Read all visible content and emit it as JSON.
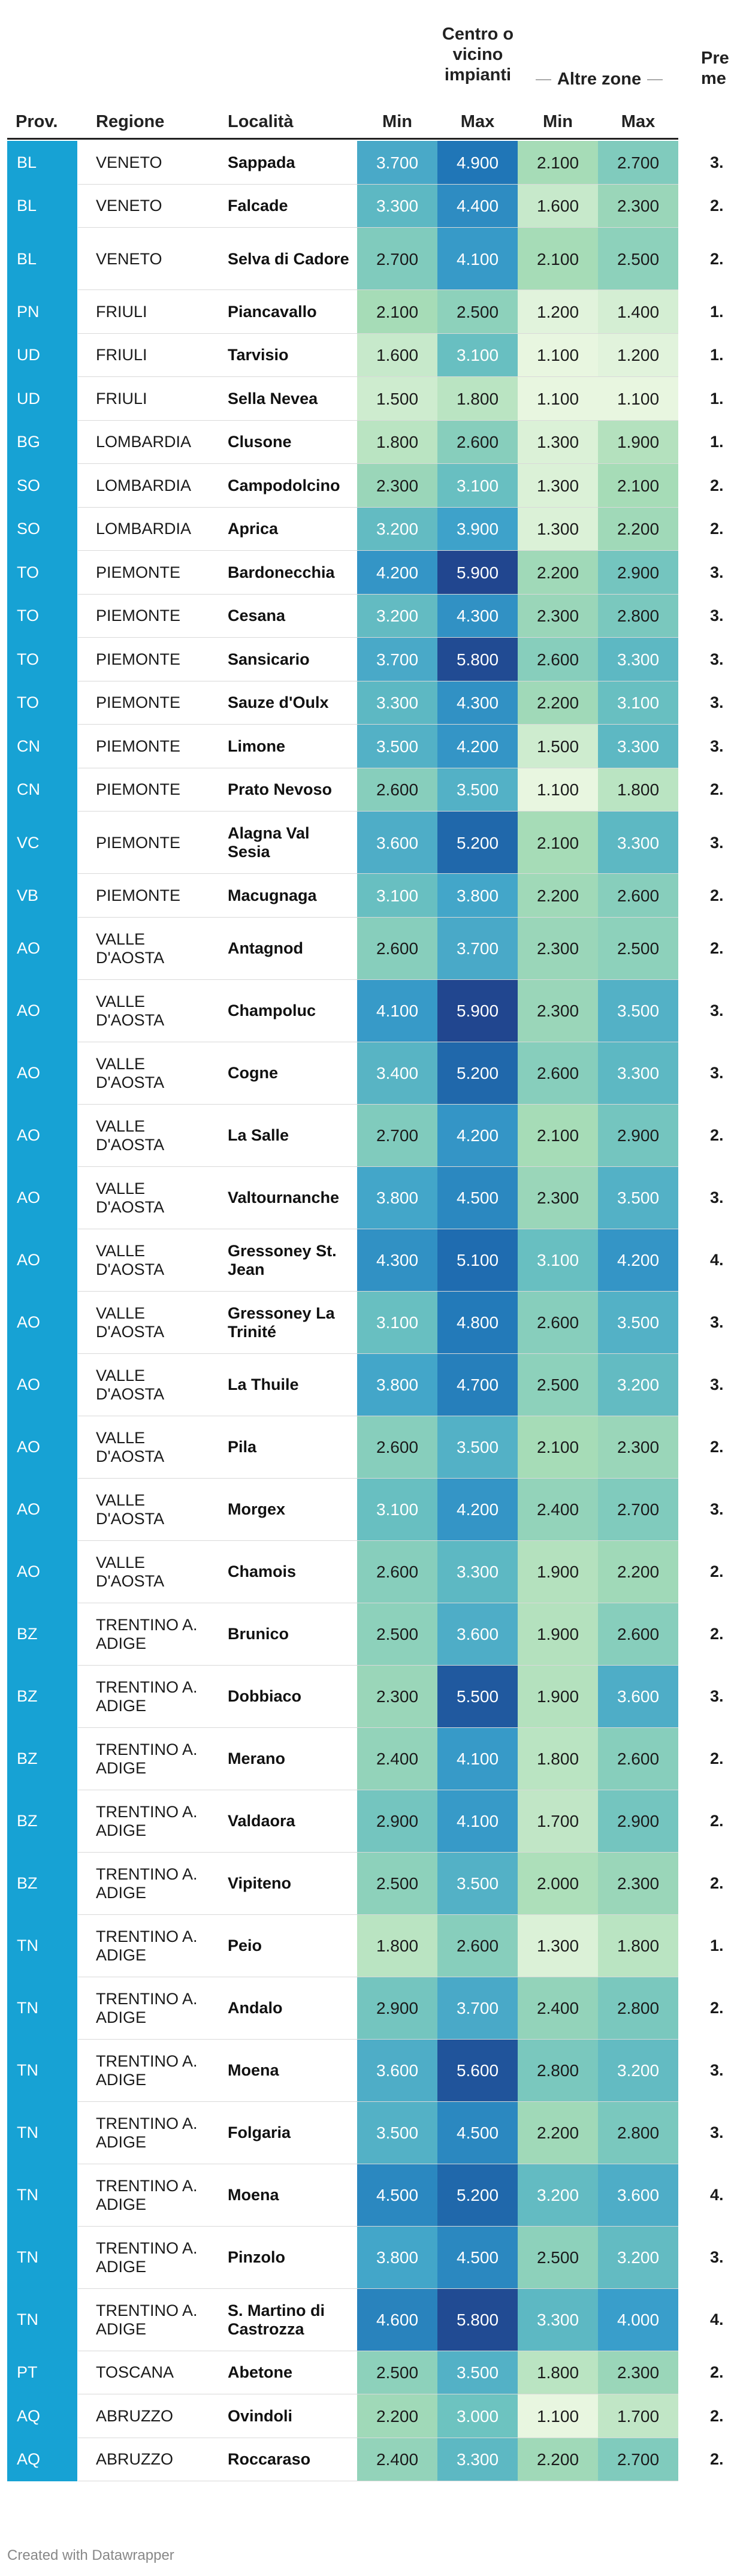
{
  "header": {
    "prov": "Prov.",
    "regione": "Regione",
    "localita": "Località",
    "centro_line1": "Centro o",
    "centro_line2": "vicino",
    "centro_line3": "impianti",
    "altre": "Altre zone",
    "min": "Min",
    "max": "Max",
    "prezzo_line1": "Pre",
    "prezzo_line2": "me"
  },
  "footer": "Created with Datawrapper",
  "color_scale": [
    "#e8f6e0",
    "#a9ddb7",
    "#6cc2c0",
    "#3a9fcb",
    "#1f74b6",
    "#21468f"
  ],
  "chart_data": {
    "type": "table",
    "columns": [
      "Prov.",
      "Regione",
      "Località",
      "Centro o vicino impianti Min",
      "Centro o vicino impianti Max",
      "Altre zone Min",
      "Altre zone Max",
      "Prezzo medio"
    ],
    "rows": [
      {
        "prov": "BL",
        "regione": "VENETO",
        "localita": "Sappada",
        "min1": "3.700",
        "max1": "4.900",
        "min2": "2.100",
        "max2": "2.700",
        "med": "3."
      },
      {
        "prov": "BL",
        "regione": "VENETO",
        "localita": "Falcade",
        "min1": "3.300",
        "max1": "4.400",
        "min2": "1.600",
        "max2": "2.300",
        "med": "2."
      },
      {
        "prov": "BL",
        "regione": "VENETO",
        "localita": "Selva di Cadore",
        "min1": "2.700",
        "max1": "4.100",
        "min2": "2.100",
        "max2": "2.500",
        "med": "2."
      },
      {
        "prov": "PN",
        "regione": "FRIULI",
        "localita": "Piancavallo",
        "min1": "2.100",
        "max1": "2.500",
        "min2": "1.200",
        "max2": "1.400",
        "med": "1."
      },
      {
        "prov": "UD",
        "regione": "FRIULI",
        "localita": "Tarvisio",
        "min1": "1.600",
        "max1": "3.100",
        "min2": "1.100",
        "max2": "1.200",
        "med": "1."
      },
      {
        "prov": "UD",
        "regione": "FRIULI",
        "localita": "Sella Nevea",
        "min1": "1.500",
        "max1": "1.800",
        "min2": "1.100",
        "max2": "1.100",
        "med": "1."
      },
      {
        "prov": "BG",
        "regione": "LOMBARDIA",
        "localita": "Clusone",
        "min1": "1.800",
        "max1": "2.600",
        "min2": "1.300",
        "max2": "1.900",
        "med": "1."
      },
      {
        "prov": "SO",
        "regione": "LOMBARDIA",
        "localita": "Campodolcino",
        "min1": "2.300",
        "max1": "3.100",
        "min2": "1.300",
        "max2": "2.100",
        "med": "2."
      },
      {
        "prov": "SO",
        "regione": "LOMBARDIA",
        "localita": "Aprica",
        "min1": "3.200",
        "max1": "3.900",
        "min2": "1.300",
        "max2": "2.200",
        "med": "2."
      },
      {
        "prov": "TO",
        "regione": "PIEMONTE",
        "localita": "Bardonecchia",
        "min1": "4.200",
        "max1": "5.900",
        "min2": "2.200",
        "max2": "2.900",
        "med": "3."
      },
      {
        "prov": "TO",
        "regione": "PIEMONTE",
        "localita": "Cesana",
        "min1": "3.200",
        "max1": "4.300",
        "min2": "2.300",
        "max2": "2.800",
        "med": "3."
      },
      {
        "prov": "TO",
        "regione": "PIEMONTE",
        "localita": "Sansicario",
        "min1": "3.700",
        "max1": "5.800",
        "min2": "2.600",
        "max2": "3.300",
        "med": "3."
      },
      {
        "prov": "TO",
        "regione": "PIEMONTE",
        "localita": "Sauze d'Oulx",
        "min1": "3.300",
        "max1": "4.300",
        "min2": "2.200",
        "max2": "3.100",
        "med": "3."
      },
      {
        "prov": "CN",
        "regione": "PIEMONTE",
        "localita": "Limone",
        "min1": "3.500",
        "max1": "4.200",
        "min2": "1.500",
        "max2": "3.300",
        "med": "3."
      },
      {
        "prov": "CN",
        "regione": "PIEMONTE",
        "localita": "Prato Nevoso",
        "min1": "2.600",
        "max1": "3.500",
        "min2": "1.100",
        "max2": "1.800",
        "med": "2."
      },
      {
        "prov": "VC",
        "regione": "PIEMONTE",
        "localita": "Alagna Val Sesia",
        "min1": "3.600",
        "max1": "5.200",
        "min2": "2.100",
        "max2": "3.300",
        "med": "3."
      },
      {
        "prov": "VB",
        "regione": "PIEMONTE",
        "localita": "Macugnaga",
        "min1": "3.100",
        "max1": "3.800",
        "min2": "2.200",
        "max2": "2.600",
        "med": "2."
      },
      {
        "prov": "AO",
        "regione": "VALLE D'AOSTA",
        "localita": "Antagnod",
        "min1": "2.600",
        "max1": "3.700",
        "min2": "2.300",
        "max2": "2.500",
        "med": "2."
      },
      {
        "prov": "AO",
        "regione": "VALLE D'AOSTA",
        "localita": "Champoluc",
        "min1": "4.100",
        "max1": "5.900",
        "min2": "2.300",
        "max2": "3.500",
        "med": "3."
      },
      {
        "prov": "AO",
        "regione": "VALLE D'AOSTA",
        "localita": "Cogne",
        "min1": "3.400",
        "max1": "5.200",
        "min2": "2.600",
        "max2": "3.300",
        "med": "3."
      },
      {
        "prov": "AO",
        "regione": "VALLE D'AOSTA",
        "localita": "La Salle",
        "min1": "2.700",
        "max1": "4.200",
        "min2": "2.100",
        "max2": "2.900",
        "med": "2."
      },
      {
        "prov": "AO",
        "regione": "VALLE D'AOSTA",
        "localita": "Valtournanche",
        "min1": "3.800",
        "max1": "4.500",
        "min2": "2.300",
        "max2": "3.500",
        "med": "3."
      },
      {
        "prov": "AO",
        "regione": "VALLE D'AOSTA",
        "localita": "Gressoney St. Jean",
        "min1": "4.300",
        "max1": "5.100",
        "min2": "3.100",
        "max2": "4.200",
        "med": "4."
      },
      {
        "prov": "AO",
        "regione": "VALLE D'AOSTA",
        "localita": "Gressoney La Trinité",
        "min1": "3.100",
        "max1": "4.800",
        "min2": "2.600",
        "max2": "3.500",
        "med": "3."
      },
      {
        "prov": "AO",
        "regione": "VALLE D'AOSTA",
        "localita": "La Thuile",
        "min1": "3.800",
        "max1": "4.700",
        "min2": "2.500",
        "max2": "3.200",
        "med": "3."
      },
      {
        "prov": "AO",
        "regione": "VALLE D'AOSTA",
        "localita": "Pila",
        "min1": "2.600",
        "max1": "3.500",
        "min2": "2.100",
        "max2": "2.300",
        "med": "2."
      },
      {
        "prov": "AO",
        "regione": "VALLE D'AOSTA",
        "localita": "Morgex",
        "min1": "3.100",
        "max1": "4.200",
        "min2": "2.400",
        "max2": "2.700",
        "med": "3."
      },
      {
        "prov": "AO",
        "regione": "VALLE D'AOSTA",
        "localita": "Chamois",
        "min1": "2.600",
        "max1": "3.300",
        "min2": "1.900",
        "max2": "2.200",
        "med": "2."
      },
      {
        "prov": "BZ",
        "regione": "TRENTINO A. ADIGE",
        "localita": "Brunico",
        "min1": "2.500",
        "max1": "3.600",
        "min2": "1.900",
        "max2": "2.600",
        "med": "2."
      },
      {
        "prov": "BZ",
        "regione": "TRENTINO A. ADIGE",
        "localita": "Dobbiaco",
        "min1": "2.300",
        "max1": "5.500",
        "min2": "1.900",
        "max2": "3.600",
        "med": "3."
      },
      {
        "prov": "BZ",
        "regione": "TRENTINO A. ADIGE",
        "localita": "Merano",
        "min1": "2.400",
        "max1": "4.100",
        "min2": "1.800",
        "max2": "2.600",
        "med": "2."
      },
      {
        "prov": "BZ",
        "regione": "TRENTINO A. ADIGE",
        "localita": "Valdaora",
        "min1": "2.900",
        "max1": "4.100",
        "min2": "1.700",
        "max2": "2.900",
        "med": "2."
      },
      {
        "prov": "BZ",
        "regione": "TRENTINO A. ADIGE",
        "localita": "Vipiteno",
        "min1": "2.500",
        "max1": "3.500",
        "min2": "2.000",
        "max2": "2.300",
        "med": "2."
      },
      {
        "prov": "TN",
        "regione": "TRENTINO A. ADIGE",
        "localita": "Peio",
        "min1": "1.800",
        "max1": "2.600",
        "min2": "1.300",
        "max2": "1.800",
        "med": "1."
      },
      {
        "prov": "TN",
        "regione": "TRENTINO A. ADIGE",
        "localita": "Andalo",
        "min1": "2.900",
        "max1": "3.700",
        "min2": "2.400",
        "max2": "2.800",
        "med": "2."
      },
      {
        "prov": "TN",
        "regione": "TRENTINO A. ADIGE",
        "localita": "Moena",
        "min1": "3.600",
        "max1": "5.600",
        "min2": "2.800",
        "max2": "3.200",
        "med": "3."
      },
      {
        "prov": "TN",
        "regione": "TRENTINO A. ADIGE",
        "localita": "Folgaria",
        "min1": "3.500",
        "max1": "4.500",
        "min2": "2.200",
        "max2": "2.800",
        "med": "3."
      },
      {
        "prov": "TN",
        "regione": "TRENTINO A. ADIGE",
        "localita": "Moena",
        "min1": "4.500",
        "max1": "5.200",
        "min2": "3.200",
        "max2": "3.600",
        "med": "4."
      },
      {
        "prov": "TN",
        "regione": "TRENTINO A. ADIGE",
        "localita": "Pinzolo",
        "min1": "3.800",
        "max1": "4.500",
        "min2": "2.500",
        "max2": "3.200",
        "med": "3."
      },
      {
        "prov": "TN",
        "regione": "TRENTINO A. ADIGE",
        "localita": "S. Martino di Castrozza",
        "min1": "4.600",
        "max1": "5.800",
        "min2": "3.300",
        "max2": "4.000",
        "med": "4."
      },
      {
        "prov": "PT",
        "regione": "TOSCANA",
        "localita": "Abetone",
        "min1": "2.500",
        "max1": "3.500",
        "min2": "1.800",
        "max2": "2.300",
        "med": "2."
      },
      {
        "prov": "AQ",
        "regione": "ABRUZZO",
        "localita": "Ovindoli",
        "min1": "2.200",
        "max1": "3.000",
        "min2": "1.100",
        "max2": "1.700",
        "med": "2."
      },
      {
        "prov": "AQ",
        "regione": "ABRUZZO",
        "localita": "Roccaraso",
        "min1": "2.400",
        "max1": "3.300",
        "min2": "2.200",
        "max2": "2.700",
        "med": "2."
      }
    ]
  }
}
